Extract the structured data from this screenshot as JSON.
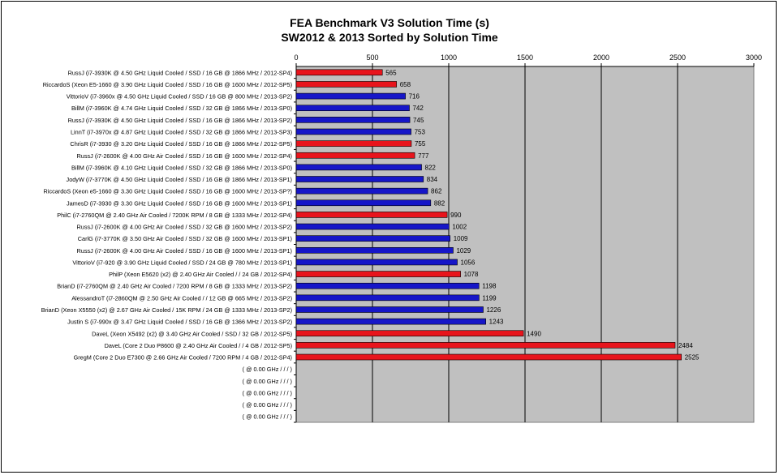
{
  "chart_data": {
    "type": "bar",
    "orientation": "horizontal",
    "title": "FEA Benchmark V3 Solution Time (s)",
    "subtitle": "SW2012 & 2013 Sorted by Solution Time",
    "xlim": [
      0,
      3000
    ],
    "xticks": [
      0,
      500,
      1000,
      1500,
      2000,
      2500,
      3000
    ],
    "grid": true,
    "legend": "none",
    "colors": {
      "2012": "#e8141c",
      "2013": "#1616c8",
      "plot_bg": "#c0c0c0"
    },
    "categories": [
      "RussJ (i7-3930K @ 4.50 GHz Liquid Cooled / SSD / 16 GB @ 1866 MHz / 2012-SP4)",
      "RiccardoS (Xeon E5-1660 @ 3.90 GHz Liquid Cooled / SSD / 16 GB @ 1600 MHz / 2012-SP5)",
      "VittorioV (i7-3960x @ 4.50 GHz Liquid Cooled / SSD / 16 GB @ 800 MHz / 2013-SP2)",
      "BillM (i7-3960K @ 4.74 GHz Liquid Cooled / SSD / 32 GB @ 1866 MHz / 2013-SP0)",
      "RussJ (i7-3930K @ 4.50 GHz Liquid Cooled / SSD / 16 GB @ 1866 MHz / 2013-SP2)",
      "LinnT (i7-3970x @ 4.87 GHz Liquid Cooled / SSD / 32 GB @ 1866 MHz / 2013-SP3)",
      "ChrisR (i7-3930 @ 3.20 GHz Liquid Cooled / SSD / 16 GB @ 1866 MHz / 2012-SP5)",
      "RussJ (i7-2600K @ 4.00 GHz Air Cooled / SSD / 16 GB @ 1600 MHz / 2012-SP4)",
      "BillM (i7-3960K @ 4.10 GHz Liquid Cooled / SSD / 32 GB @ 1866 MHz / 2013-SP0)",
      "JodyW (i7-3770K @ 4.50 GHz Liquid Cooled / SSD / 16 GB @ 1866 MHz / 2013-SP1)",
      "RiccardoS (Xeon e5-1660 @ 3.30 GHz Liquid Cooled / SSD / 16 GB @ 1600 MHz / 2013-SP?)",
      "JamesD (i7-3930 @ 3.30 GHz Liquid Cooled / SSD / 16 GB @ 1600 MHz / 2013-SP1)",
      "PhilC (i7-2760QM @ 2.40 GHz Air Cooled / 7200K RPM / 8 GB @ 1333 MHz / 2012-SP4)",
      "RussJ (i7-2600K @ 4.00 GHz Air Cooled / SSD / 32 GB @ 1600 MHz / 2013-SP2)",
      "CarlG (i7-3770K @ 3.50 GHz Air Cooled / SSD / 32 GB @ 1600 MHz / 2013-SP1)",
      "RussJ (i7-2600K @ 4.00 GHz Air Cooled / SSD / 16 GB @ 1600 MHz / 2013-SP1)",
      "VittorioV (i7-920 @ 3.90 GHz Liquid Cooled / SSD / 24 GB @ 780 MHz / 2013-SP1)",
      "PhilP (Xeon E5620 (x2) @ 2.40 GHz Air Cooled /  / 24 GB / 2012-SP4)",
      "BrianD (i7-2760QM @ 2.40 GHz Air Cooled / 7200 RPM / 8 GB @ 1333 MHz / 2013-SP2)",
      "AlessandroT (i7-2860QM @ 2.50 GHz Air Cooled /  / 12 GB @ 665 MHz / 2013-SP2)",
      "BrianD (Xeon X5550 (x2) @ 2.67 GHz Air Cooled / 15K RPM / 24 GB @ 1333 MHz / 2013-SP2)",
      "Justin S (i7-990x @ 3.47 GHz Liquid Cooled / SSD / 16 GB @ 1366 MHz / 2013-SP2)",
      "DaveL (Xeon X5492 (x2) @ 3.40 GHz Air Cooled / SSD / 32 GB / 2012-SP5)",
      "DaveL (Core 2 Duo P8600 @ 2.40 GHz Air Cooled /  / 4 GB / 2012-SP5)",
      "GregM (Core 2 Duo E7300 @ 2.66 GHz Air Cooled / 7200 RPM / 4 GB / 2012-SP4)",
      " ( @ 0.00 GHz  /  /  / )",
      " ( @ 0.00 GHz  /  /  / )",
      " ( @ 0.00 GHz  /  /  / )",
      " ( @ 0.00 GHz  /  /  / )",
      " ( @ 0.00 GHz  /  /  / )"
    ],
    "values": [
      565,
      658,
      716,
      742,
      745,
      753,
      755,
      777,
      822,
      834,
      862,
      882,
      990,
      1002,
      1009,
      1029,
      1056,
      1078,
      1198,
      1199,
      1226,
      1243,
      1490,
      2484,
      2525,
      null,
      null,
      null,
      null,
      null
    ],
    "series_group": [
      "2012",
      "2012",
      "2013",
      "2013",
      "2013",
      "2013",
      "2012",
      "2012",
      "2013",
      "2013",
      "2013",
      "2013",
      "2012",
      "2013",
      "2013",
      "2013",
      "2013",
      "2012",
      "2013",
      "2013",
      "2013",
      "2013",
      "2012",
      "2012",
      "2012",
      null,
      null,
      null,
      null,
      null
    ]
  }
}
